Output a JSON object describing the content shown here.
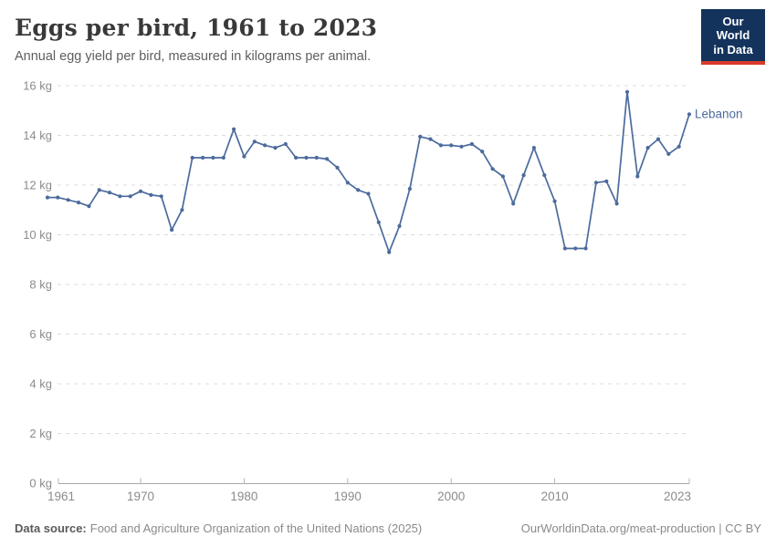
{
  "header": {
    "title": "Eggs per bird, 1961 to 2023",
    "subtitle": "Annual egg yield per bird, measured in kilograms per animal."
  },
  "logo": {
    "line1": "Our World",
    "line2": "in Data",
    "bg_color": "#14335C",
    "bar_color": "#D93B2B"
  },
  "chart_data": {
    "type": "line",
    "title": "Eggs per bird, 1961 to 2023",
    "subtitle": "Annual egg yield per bird, measured in kilograms per animal.",
    "unit": "kg",
    "xlim": [
      1961,
      2023
    ],
    "ylim": [
      0,
      16
    ],
    "grid": "horizontal-dashed",
    "legend_position": "end-of-line",
    "x": [
      1961,
      1962,
      1963,
      1964,
      1965,
      1966,
      1967,
      1968,
      1969,
      1970,
      1971,
      1972,
      1973,
      1974,
      1975,
      1976,
      1977,
      1978,
      1979,
      1980,
      1981,
      1982,
      1983,
      1984,
      1985,
      1986,
      1987,
      1988,
      1989,
      1990,
      1991,
      1992,
      1993,
      1994,
      1995,
      1996,
      1997,
      1998,
      1999,
      2000,
      2001,
      2002,
      2003,
      2004,
      2005,
      2006,
      2007,
      2008,
      2009,
      2010,
      2011,
      2012,
      2013,
      2014,
      2015,
      2016,
      2017,
      2018,
      2019,
      2020,
      2021,
      2022,
      2023
    ],
    "series": [
      {
        "name": "Lebanon",
        "color": "#4C6A9C",
        "values": [
          11.5,
          11.5,
          11.4,
          11.3,
          11.15,
          11.8,
          11.7,
          11.55,
          11.55,
          11.75,
          11.6,
          11.55,
          10.2,
          11.0,
          13.1,
          13.1,
          13.1,
          13.1,
          14.25,
          13.15,
          13.75,
          13.6,
          13.5,
          13.65,
          13.1,
          13.1,
          13.1,
          13.05,
          12.7,
          12.1,
          11.8,
          11.65,
          10.5,
          9.3,
          10.35,
          11.85,
          13.95,
          13.85,
          13.6,
          13.6,
          13.55,
          13.65,
          13.35,
          12.65,
          12.35,
          11.25,
          12.4,
          13.5,
          12.4,
          11.35,
          9.45,
          9.45,
          9.45,
          12.1,
          12.15,
          11.25,
          15.75,
          12.35,
          13.5,
          13.85,
          13.25,
          13.55,
          14.85
        ]
      }
    ],
    "x_ticks": [
      {
        "value": 1961,
        "label": "1961",
        "anchor": "start"
      },
      {
        "value": 1970,
        "label": "1970"
      },
      {
        "value": 1980,
        "label": "1980"
      },
      {
        "value": 1990,
        "label": "1990"
      },
      {
        "value": 2000,
        "label": "2000"
      },
      {
        "value": 2010,
        "label": "2010"
      },
      {
        "value": 2023,
        "label": "2023",
        "anchor": "end"
      }
    ],
    "y_ticks": [
      {
        "value": 0,
        "label": "0 kg"
      },
      {
        "value": 2,
        "label": "2 kg"
      },
      {
        "value": 4,
        "label": "4 kg"
      },
      {
        "value": 6,
        "label": "6 kg"
      },
      {
        "value": 8,
        "label": "8 kg"
      },
      {
        "value": 10,
        "label": "10 kg"
      },
      {
        "value": 12,
        "label": "12 kg"
      },
      {
        "value": 14,
        "label": "14 kg"
      },
      {
        "value": 16,
        "label": "16 kg"
      }
    ]
  },
  "footer": {
    "source_label": "Data source:",
    "source_text": "Food and Agriculture Organization of the United Nations (2025)",
    "right_text": "OurWorldinData.org/meat-production | CC BY"
  }
}
